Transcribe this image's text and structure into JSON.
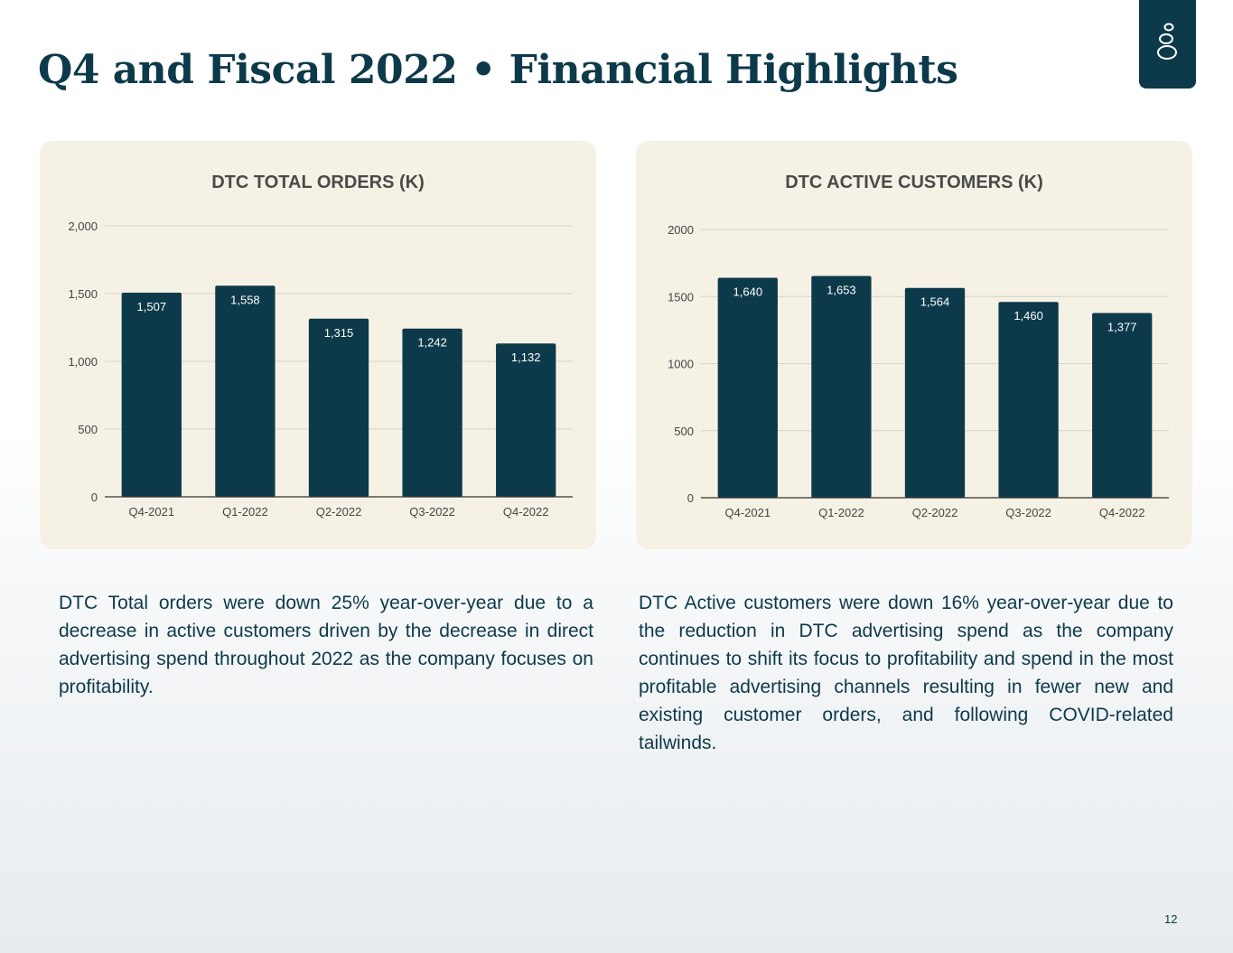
{
  "slide": {
    "title": "Q4 and Fiscal 2022 • Financial Highlights",
    "page_number": "12",
    "logo_icon": "stacked-stones-logo-icon"
  },
  "colors": {
    "brand": "#0d3a4a",
    "panel": "#f5f1e4",
    "bar": "#0d3a4a"
  },
  "paragraphs": {
    "left": "DTC Total orders were down 25% year-over-year due to a decrease in active customers driven by the decrease in direct advertising spend throughout 2022 as the company focuses on profitability.",
    "right": "DTC Active customers were down 16% year-over-year due to the reduction in DTC advertising spend as the company continues to shift its focus to profitability and spend in the most profitable advertising channels resulting in fewer new and existing customer orders, and following COVID-related tailwinds."
  },
  "chart_data": [
    {
      "type": "bar",
      "title": "DTC TOTAL ORDERS (K)",
      "categories": [
        "Q4-2021",
        "Q1-2022",
        "Q2-2022",
        "Q3-2022",
        "Q4-2022"
      ],
      "values": [
        1507,
        1558,
        1315,
        1242,
        1132
      ],
      "value_labels": [
        "1,507",
        "1,558",
        "1,315",
        "1,242",
        "1,132"
      ],
      "y_ticks": [
        0,
        500,
        1000,
        1500,
        2000
      ],
      "y_tick_labels": [
        "0",
        "500",
        "1,000",
        "1,500",
        "2,000"
      ],
      "ylim": [
        0,
        2000
      ],
      "xlabel": "",
      "ylabel": "",
      "grid": true
    },
    {
      "type": "bar",
      "title": "DTC ACTIVE CUSTOMERS (K)",
      "categories": [
        "Q4-2021",
        "Q1-2022",
        "Q2-2022",
        "Q3-2022",
        "Q4-2022"
      ],
      "values": [
        1640,
        1653,
        1564,
        1460,
        1377
      ],
      "value_labels": [
        "1,640",
        "1,653",
        "1,564",
        "1,460",
        "1,377"
      ],
      "y_ticks": [
        0,
        500,
        1000,
        1500,
        2000
      ],
      "y_tick_labels": [
        "0",
        "500",
        "1000",
        "1500",
        "2000"
      ],
      "ylim": [
        0,
        2000
      ],
      "xlabel": "",
      "ylabel": "",
      "grid": true
    }
  ]
}
